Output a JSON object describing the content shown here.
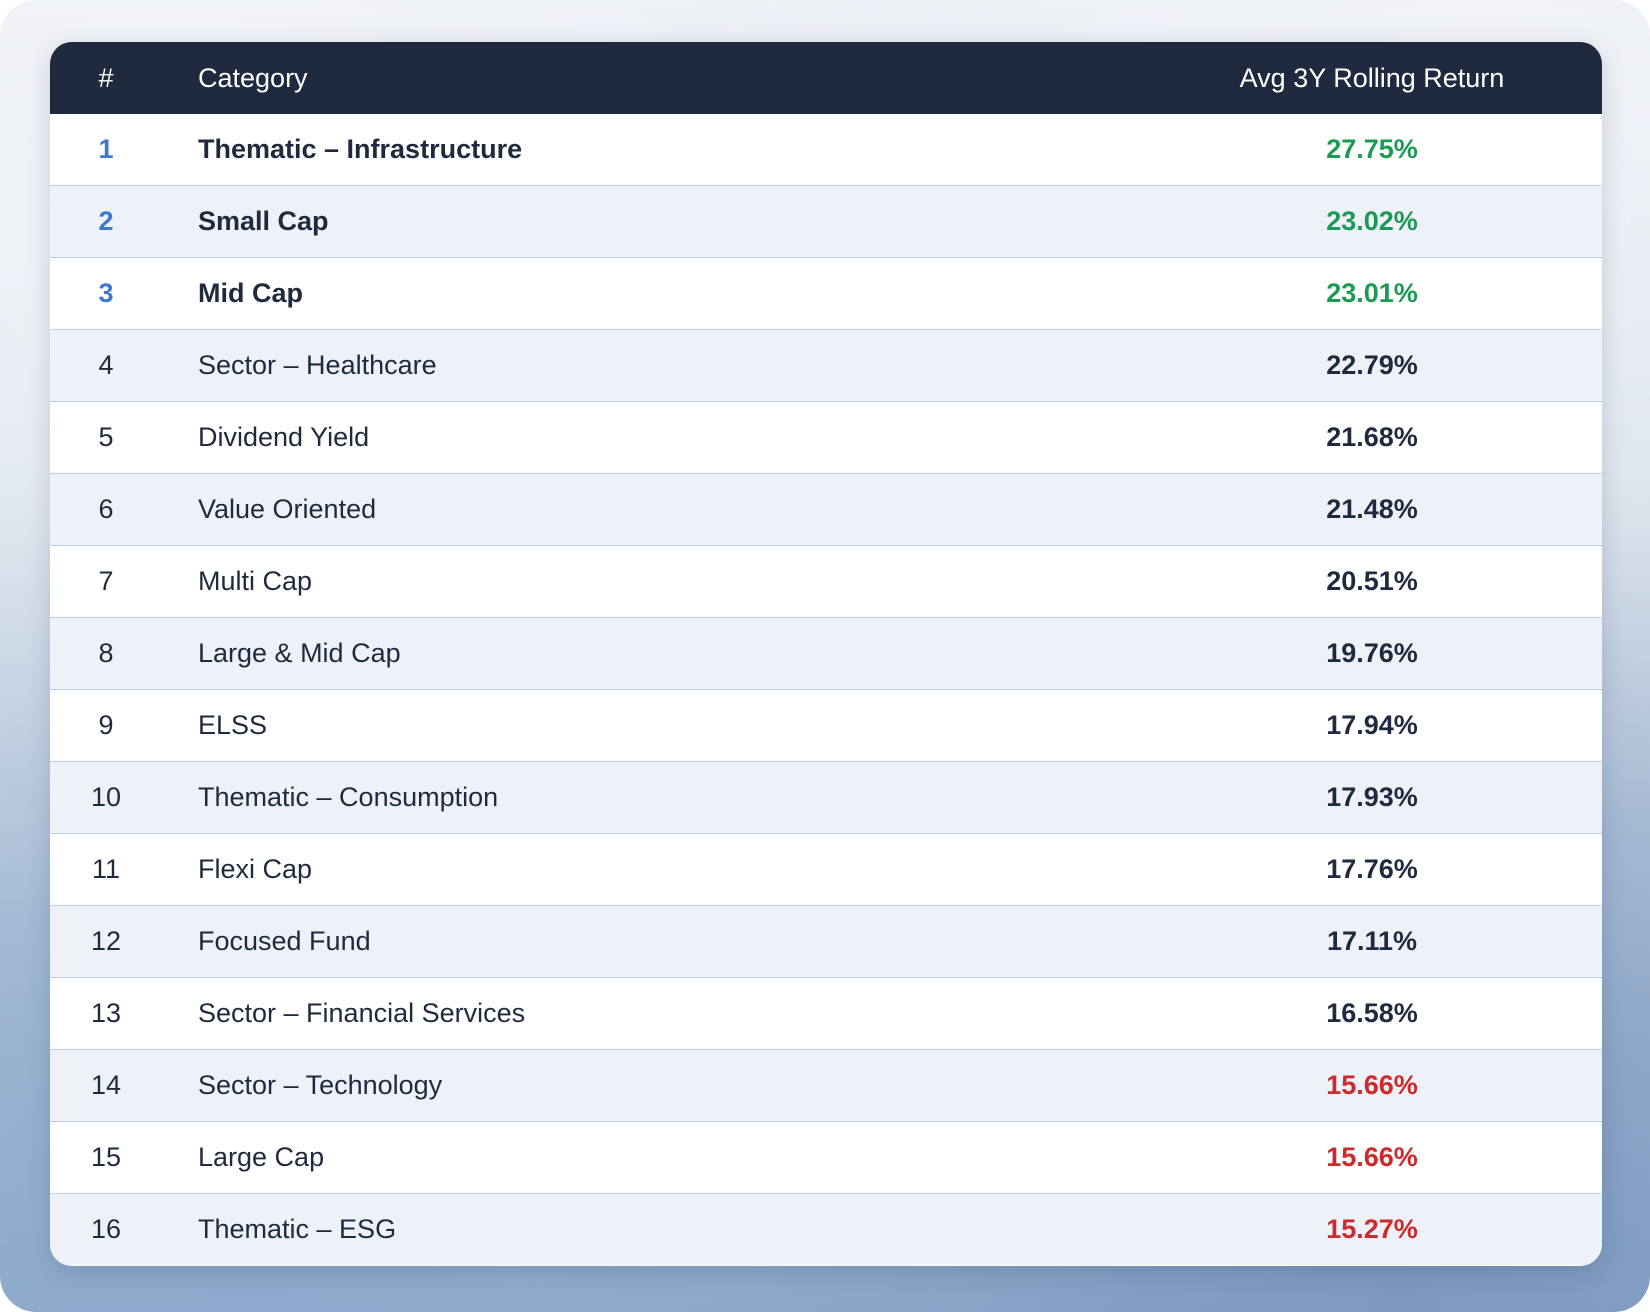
{
  "table": {
    "headers": {
      "rank": "#",
      "category": "Category",
      "return": "Avg 3Y Rolling Return"
    }
  },
  "chart_data": {
    "type": "table",
    "columns": [
      "#",
      "Category",
      "Avg 3Y Rolling Return"
    ],
    "rows": [
      {
        "rank": "1",
        "category": "Thematic – Infrastructure",
        "return": "27.75%",
        "value": 27.75,
        "tier": "top"
      },
      {
        "rank": "2",
        "category": "Small Cap",
        "return": "23.02%",
        "value": 23.02,
        "tier": "top"
      },
      {
        "rank": "3",
        "category": "Mid Cap",
        "return": "23.01%",
        "value": 23.01,
        "tier": "top"
      },
      {
        "rank": "4",
        "category": "Sector – Healthcare",
        "return": "22.79%",
        "value": 22.79,
        "tier": "mid"
      },
      {
        "rank": "5",
        "category": "Dividend Yield",
        "return": "21.68%",
        "value": 21.68,
        "tier": "mid"
      },
      {
        "rank": "6",
        "category": "Value Oriented",
        "return": "21.48%",
        "value": 21.48,
        "tier": "mid"
      },
      {
        "rank": "7",
        "category": "Multi Cap",
        "return": "20.51%",
        "value": 20.51,
        "tier": "mid"
      },
      {
        "rank": "8",
        "category": "Large & Mid Cap",
        "return": "19.76%",
        "value": 19.76,
        "tier": "mid"
      },
      {
        "rank": "9",
        "category": "ELSS",
        "return": "17.94%",
        "value": 17.94,
        "tier": "mid"
      },
      {
        "rank": "10",
        "category": "Thematic – Consumption",
        "return": "17.93%",
        "value": 17.93,
        "tier": "mid"
      },
      {
        "rank": "11",
        "category": "Flexi Cap",
        "return": "17.76%",
        "value": 17.76,
        "tier": "mid"
      },
      {
        "rank": "12",
        "category": "Focused Fund",
        "return": "17.11%",
        "value": 17.11,
        "tier": "mid"
      },
      {
        "rank": "13",
        "category": "Sector – Financial Services",
        "return": "16.58%",
        "value": 16.58,
        "tier": "mid"
      },
      {
        "rank": "14",
        "category": "Sector – Technology",
        "return": "15.66%",
        "value": 15.66,
        "tier": "bottom"
      },
      {
        "rank": "15",
        "category": "Large Cap",
        "return": "15.66%",
        "value": 15.66,
        "tier": "bottom"
      },
      {
        "rank": "16",
        "category": "Thematic – ESG",
        "return": "15.27%",
        "value": 15.27,
        "tier": "bottom"
      }
    ]
  },
  "colors": {
    "header_bg": "#1f2a3e",
    "top_rank": "#3e78d0",
    "positive": "#1b9a52",
    "negative": "#cf2a2a",
    "neutral": "#1f2a3e"
  }
}
